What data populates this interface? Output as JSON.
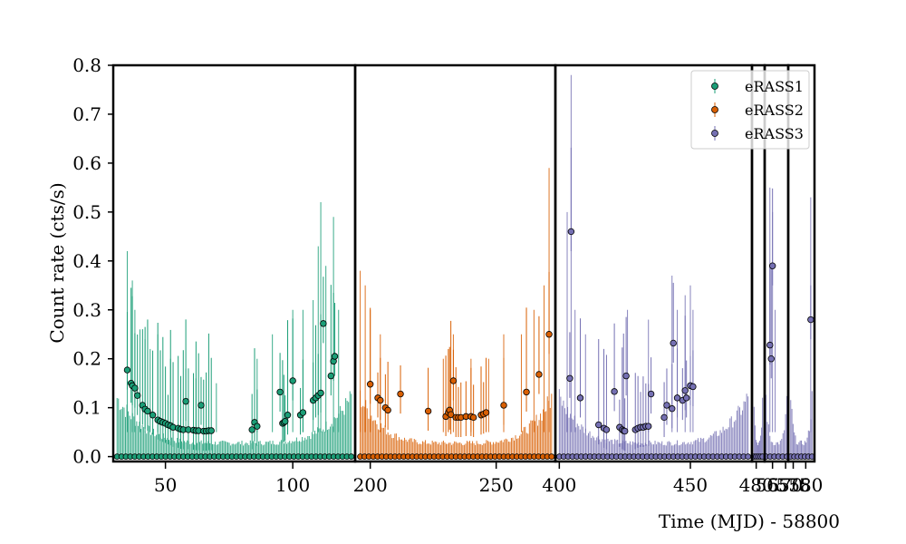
{
  "chart_data": {
    "type": "scatter",
    "title": "",
    "xlabel": "Time (MJD) - 58800",
    "ylabel": "Count rate (cts/s)",
    "ylim": [
      -0.01,
      0.8
    ],
    "yticks": [
      0.0,
      0.1,
      0.2,
      0.3,
      0.4,
      0.5,
      0.6,
      0.7,
      0.8
    ],
    "ytick_labels": [
      "0.0",
      "0.1",
      "0.2",
      "0.3",
      "0.4",
      "0.5",
      "0.6",
      "0.7",
      "0.8"
    ],
    "legend_position": "top-right",
    "panels": [
      {
        "xlim": [
          29.5,
          124.5
        ],
        "xticks": [
          50,
          100
        ],
        "xtick_labels": [
          "50",
          "100"
        ]
      },
      {
        "xlim": [
          194,
          273.5
        ],
        "xticks": [
          200,
          250
        ],
        "xtick_labels": [
          "200",
          "250"
        ]
      },
      {
        "xlim": [
          398.5,
          473.5
        ],
        "xticks": [
          400,
          450
        ],
        "xtick_labels": [
          "400",
          "450"
        ]
      },
      {
        "xlim": [
          479,
          482
        ],
        "xticks": [
          480
        ],
        "xtick_labels": [
          "480"
        ]
      },
      {
        "xlim": [
          562,
          571
        ],
        "xticks": [
          565,
          570
        ],
        "xtick_labels": [
          "565",
          "570"
        ]
      },
      {
        "xlim": [
          573,
          583.5
        ],
        "xticks": [
          575,
          580
        ],
        "xtick_labels": [
          "575",
          "580"
        ]
      }
    ],
    "series": [
      {
        "name": "eRASS1",
        "color": "#1b9e77",
        "panel": 0,
        "points": [
          [
            35,
            0.177
          ],
          [
            36.5,
            0.15
          ],
          [
            37,
            0.145
          ],
          [
            38,
            0.14
          ],
          [
            39,
            0.125
          ],
          [
            41,
            0.105
          ],
          [
            42,
            0.097
          ],
          [
            43,
            0.093
          ],
          [
            45,
            0.085
          ],
          [
            47,
            0.075
          ],
          [
            48,
            0.072
          ],
          [
            49,
            0.07
          ],
          [
            50,
            0.068
          ],
          [
            51,
            0.065
          ],
          [
            52,
            0.063
          ],
          [
            53,
            0.06
          ],
          [
            55,
            0.058
          ],
          [
            56,
            0.056
          ],
          [
            57,
            0.055
          ],
          [
            58,
            0.113
          ],
          [
            59,
            0.055
          ],
          [
            61,
            0.054
          ],
          [
            62,
            0.053
          ],
          [
            63,
            0.053
          ],
          [
            64,
            0.105
          ],
          [
            65,
            0.052
          ],
          [
            66,
            0.052
          ],
          [
            67,
            0.053
          ],
          [
            68,
            0.053
          ],
          [
            84,
            0.055
          ],
          [
            85,
            0.07
          ],
          [
            86,
            0.062
          ],
          [
            95,
            0.132
          ],
          [
            96,
            0.068
          ],
          [
            96.5,
            0.07
          ],
          [
            97,
            0.072
          ],
          [
            98,
            0.085
          ],
          [
            100,
            0.155
          ],
          [
            103,
            0.085
          ],
          [
            104,
            0.09
          ],
          [
            108,
            0.115
          ],
          [
            109,
            0.12
          ],
          [
            110,
            0.125
          ],
          [
            111,
            0.13
          ],
          [
            112,
            0.272
          ],
          [
            115,
            0.165
          ],
          [
            116,
            0.195
          ],
          [
            116.5,
            0.205
          ],
          [
            31,
            0
          ],
          [
            35,
            0
          ],
          [
            40,
            0
          ],
          [
            45,
            0
          ],
          [
            50,
            0
          ],
          [
            55,
            0
          ],
          [
            60,
            0
          ],
          [
            65,
            0
          ],
          [
            70,
            0
          ],
          [
            75,
            0
          ],
          [
            80,
            0
          ],
          [
            87,
            0
          ],
          [
            90,
            0
          ],
          [
            95,
            0
          ],
          [
            100,
            0
          ],
          [
            105,
            0
          ],
          [
            110,
            0
          ],
          [
            115,
            0
          ],
          [
            120,
            0
          ],
          [
            123,
            0
          ]
        ],
        "err_hi": [
          [
            35,
            0.42
          ],
          [
            37,
            0.36
          ],
          [
            38,
            0.3
          ],
          [
            40,
            0.26
          ],
          [
            42,
            0.24
          ],
          [
            44,
            0.22
          ],
          [
            47,
            0.25
          ],
          [
            52,
            0.2
          ],
          [
            58,
            0.18
          ],
          [
            62,
            0.16
          ],
          [
            70,
            0.15
          ],
          [
            86,
            0.2
          ],
          [
            92,
            0.25
          ],
          [
            98,
            0.24
          ],
          [
            100,
            0.3
          ],
          [
            104,
            0.3
          ],
          [
            108,
            0.32
          ],
          [
            110,
            0.43
          ],
          [
            111,
            0.52
          ],
          [
            113,
            0.39
          ],
          [
            116,
            0.49
          ],
          [
            118,
            0.3
          ]
        ]
      },
      {
        "name": "eRASS2",
        "color": "#d95f02",
        "panel": 1,
        "points": [
          [
            200,
            0.148
          ],
          [
            203,
            0.12
          ],
          [
            204,
            0.115
          ],
          [
            206,
            0.1
          ],
          [
            207,
            0.095
          ],
          [
            212,
            0.128
          ],
          [
            223,
            0.093
          ],
          [
            230,
            0.082
          ],
          [
            231,
            0.09
          ],
          [
            231.5,
            0.095
          ],
          [
            232,
            0.086
          ],
          [
            233,
            0.155
          ],
          [
            234,
            0.08
          ],
          [
            235,
            0.08
          ],
          [
            236,
            0.08
          ],
          [
            238,
            0.082
          ],
          [
            240,
            0.082
          ],
          [
            241,
            0.08
          ],
          [
            244,
            0.085
          ],
          [
            245,
            0.087
          ],
          [
            246,
            0.09
          ],
          [
            253,
            0.105
          ],
          [
            262,
            0.132
          ],
          [
            267,
            0.168
          ],
          [
            271,
            0.25
          ],
          [
            196,
            0
          ],
          [
            200,
            0
          ],
          [
            205,
            0
          ],
          [
            210,
            0
          ],
          [
            215,
            0
          ],
          [
            220,
            0
          ],
          [
            225,
            0
          ],
          [
            230,
            0
          ],
          [
            235,
            0
          ],
          [
            240,
            0
          ],
          [
            245,
            0
          ],
          [
            250,
            0
          ],
          [
            255,
            0
          ],
          [
            260,
            0
          ],
          [
            265,
            0
          ],
          [
            270,
            0
          ],
          [
            272,
            0
          ]
        ],
        "err_hi": [
          [
            196,
            0.38
          ],
          [
            198,
            0.35
          ],
          [
            200,
            0.3
          ],
          [
            204,
            0.25
          ],
          [
            229,
            0.2
          ],
          [
            233,
            0.25
          ],
          [
            240,
            0.2
          ],
          [
            247,
            0.2
          ],
          [
            253,
            0.25
          ],
          [
            260,
            0.25
          ],
          [
            265,
            0.3
          ],
          [
            269,
            0.35
          ],
          [
            271,
            0.59
          ]
        ]
      },
      {
        "name": "eRASS3",
        "color": "#7570b3",
        "panel": 2,
        "points": [
          [
            404,
            0.16
          ],
          [
            404.5,
            0.46
          ],
          [
            408,
            0.12
          ],
          [
            415,
            0.065
          ],
          [
            417,
            0.058
          ],
          [
            418,
            0.055
          ],
          [
            421,
            0.133
          ],
          [
            423,
            0.06
          ],
          [
            424,
            0.055
          ],
          [
            424.5,
            0.053
          ],
          [
            425,
            0.052
          ],
          [
            425.5,
            0.165
          ],
          [
            429,
            0.055
          ],
          [
            430,
            0.058
          ],
          [
            431,
            0.06
          ],
          [
            432,
            0.06
          ],
          [
            433,
            0.062
          ],
          [
            434,
            0.062
          ],
          [
            435,
            0.128
          ],
          [
            440,
            0.08
          ],
          [
            441,
            0.105
          ],
          [
            443,
            0.098
          ],
          [
            443.5,
            0.232
          ],
          [
            445,
            0.12
          ],
          [
            447,
            0.115
          ],
          [
            448,
            0.135
          ],
          [
            448.5,
            0.12
          ],
          [
            450,
            0.145
          ],
          [
            451,
            0.143
          ],
          [
            400,
            0
          ],
          [
            405,
            0
          ],
          [
            410,
            0
          ],
          [
            415,
            0
          ],
          [
            420,
            0
          ],
          [
            425,
            0
          ],
          [
            430,
            0
          ],
          [
            435,
            0
          ],
          [
            440,
            0
          ],
          [
            445,
            0
          ],
          [
            450,
            0
          ],
          [
            455,
            0
          ],
          [
            460,
            0
          ],
          [
            465,
            0
          ],
          [
            470,
            0
          ],
          [
            472,
            0
          ]
        ],
        "err_hi": [
          [
            403,
            0.5
          ],
          [
            404.5,
            0.78
          ],
          [
            406,
            0.3
          ],
          [
            410,
            0.25
          ],
          [
            426,
            0.3
          ],
          [
            434,
            0.28
          ],
          [
            443,
            0.37
          ],
          [
            445,
            0.3
          ],
          [
            448,
            0.33
          ],
          [
            450,
            0.35
          ],
          [
            451,
            0.3
          ]
        ]
      },
      {
        "name": "eRASS3",
        "color": "#7570b3",
        "panel": 3,
        "points": [
          [
            479.5,
            0
          ],
          [
            480.5,
            0
          ],
          [
            481.5,
            0
          ]
        ],
        "err_hi": []
      },
      {
        "name": "eRASS3",
        "color": "#7570b3",
        "panel": 4,
        "points": [
          [
            564,
            0.228
          ],
          [
            564.5,
            0.2
          ],
          [
            565,
            0.39
          ],
          [
            562.5,
            0
          ],
          [
            563.5,
            0
          ],
          [
            565.5,
            0
          ],
          [
            567,
            0
          ],
          [
            569,
            0
          ],
          [
            570.5,
            0
          ]
        ],
        "err_hi": [
          [
            564,
            0.55
          ],
          [
            565,
            0.5
          ],
          [
            566,
            0.3
          ]
        ]
      },
      {
        "name": "eRASS3",
        "color": "#7570b3",
        "panel": 5,
        "points": [
          [
            582,
            0.28
          ],
          [
            574,
            0
          ],
          [
            575,
            0
          ],
          [
            576.5,
            0
          ],
          [
            578,
            0
          ],
          [
            579.5,
            0
          ],
          [
            581,
            0
          ],
          [
            582.5,
            0
          ]
        ],
        "err_hi": [
          [
            582,
            0.53
          ]
        ]
      }
    ],
    "legend": [
      {
        "label": "eRASS1",
        "color": "#1b9e77"
      },
      {
        "label": "eRASS2",
        "color": "#d95f02"
      },
      {
        "label": "eRASS3",
        "color": "#7570b3"
      }
    ]
  }
}
